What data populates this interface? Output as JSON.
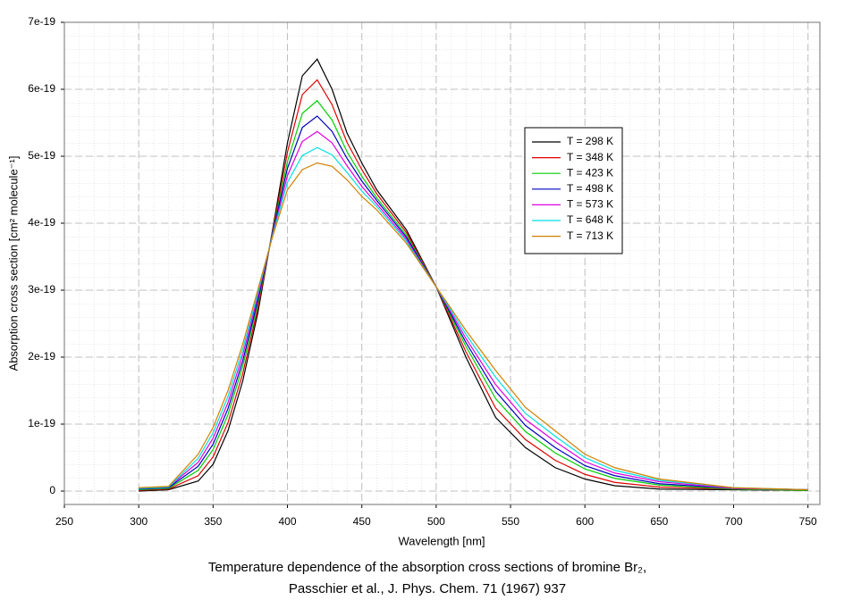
{
  "chart_data": {
    "type": "line",
    "x_label": "Wavelength [nm]",
    "y_label": "Absorption cross section [cm² molecule⁻¹]",
    "caption": [
      "Temperature dependence of the absorption cross sections of bromine Br₂,",
      "Passchier et al., J. Phys. Chem. 71 (1967) 937"
    ],
    "x": [
      300,
      320,
      340,
      350,
      360,
      370,
      380,
      390,
      400,
      410,
      420,
      430,
      440,
      450,
      460,
      480,
      500,
      520,
      540,
      560,
      580,
      600,
      620,
      650,
      700,
      750
    ],
    "series": [
      {
        "name": "T = 298 K",
        "color": "#000000",
        "values": [
          0,
          2e-21,
          1.5e-20,
          4e-20,
          9e-20,
          1.65e-19,
          2.65e-19,
          3.9e-19,
          5.2e-19,
          6.2e-19,
          6.45e-19,
          6e-19,
          5.35e-19,
          4.9e-19,
          4.5e-19,
          3.9e-19,
          3.05e-19,
          2e-19,
          1.1e-19,
          6.5e-20,
          3.5e-20,
          1.8e-20,
          8e-21,
          3e-21,
          2e-21,
          1e-21
        ]
      },
      {
        "name": "T = 348 K",
        "color": "#e00000",
        "values": [
          1e-21,
          3e-21,
          2.3e-20,
          5.1e-20,
          1.02e-19,
          1.76e-19,
          2.72e-19,
          3.88e-19,
          5.06e-19,
          5.92e-19,
          6.14e-19,
          5.77e-19,
          5.21e-19,
          4.8e-19,
          4.44e-19,
          3.86e-19,
          3.05e-19,
          2.08e-19,
          1.24e-19,
          7.7e-20,
          4.6e-20,
          2.5e-20,
          1.3e-20,
          6e-21,
          3e-21,
          1e-21
        ]
      },
      {
        "name": "T = 423 K",
        "color": "#00d000",
        "values": [
          2e-21,
          4e-21,
          3.1e-20,
          6.2e-20,
          1.14e-19,
          1.87e-19,
          2.79e-19,
          3.86e-19,
          4.92e-19,
          5.64e-19,
          5.83e-19,
          5.54e-19,
          5.07e-19,
          4.7e-19,
          4.38e-19,
          3.82e-19,
          3.05e-19,
          2.16e-19,
          1.38e-19,
          8.9e-20,
          5.7e-20,
          3.3e-20,
          1.9e-20,
          9e-21,
          3e-21,
          1e-21
        ]
      },
      {
        "name": "T = 498 K",
        "color": "#0000c0",
        "values": [
          3e-21,
          5e-21,
          3.7e-20,
          7e-20,
          1.23e-19,
          1.95e-19,
          2.84e-19,
          3.85e-19,
          4.82e-19,
          5.43e-19,
          5.6e-19,
          5.37e-19,
          4.97e-19,
          4.63e-19,
          4.34e-19,
          3.79e-19,
          3.05e-19,
          2.22e-19,
          1.49e-19,
          9.8e-20,
          6.5e-20,
          3.8e-20,
          2.3e-20,
          1.1e-20,
          4e-21,
          2e-21
        ]
      },
      {
        "name": "T = 573 K",
        "color": "#e000e0",
        "values": [
          4e-21,
          6e-21,
          4.3e-20,
          7.9e-20,
          1.32e-19,
          2.04e-19,
          2.9e-19,
          3.83e-19,
          4.71e-19,
          5.22e-19,
          5.37e-19,
          5.2e-19,
          4.86e-19,
          4.55e-19,
          4.29e-19,
          3.76e-19,
          3.05e-19,
          2.28e-19,
          1.59e-19,
          1.07e-19,
          7.4e-20,
          4.4e-20,
          2.7e-20,
          1.4e-20,
          4e-21,
          2e-21
        ]
      },
      {
        "name": "T = 648 K",
        "color": "#00e0e0",
        "values": [
          4e-21,
          6e-21,
          4.9e-20,
          8.7e-20,
          1.41e-19,
          2.12e-19,
          2.95e-19,
          3.82e-19,
          4.61e-19,
          5.01e-19,
          5.13e-19,
          5.02e-19,
          4.76e-19,
          4.48e-19,
          4.25e-19,
          3.73e-19,
          3.05e-19,
          2.34e-19,
          1.7e-19,
          1.16e-19,
          8.2e-20,
          5e-20,
          3.1e-20,
          1.6e-20,
          5e-21,
          2e-21
        ]
      },
      {
        "name": "T = 713 K",
        "color": "#d08000",
        "values": [
          5e-21,
          7e-21,
          5.5e-20,
          9.5e-20,
          1.5e-19,
          2.2e-19,
          3e-19,
          3.8e-19,
          4.5e-19,
          4.8e-19,
          4.9e-19,
          4.85e-19,
          4.65e-19,
          4.4e-19,
          4.2e-19,
          3.7e-19,
          3.05e-19,
          2.4e-19,
          1.8e-19,
          1.25e-19,
          9e-20,
          5.5e-20,
          3.5e-20,
          1.8e-20,
          5e-21,
          2e-21
        ]
      }
    ],
    "xlim": [
      250,
      758
    ],
    "ylim": [
      -2e-20,
      7e-19
    ],
    "xticks": [
      250,
      300,
      350,
      400,
      450,
      500,
      550,
      600,
      650,
      700,
      750
    ],
    "yticks": [
      0,
      1e-19,
      2e-19,
      3e-19,
      4e-19,
      5e-19,
      6e-19,
      7e-19
    ],
    "grid": true,
    "legend_position": "right"
  }
}
